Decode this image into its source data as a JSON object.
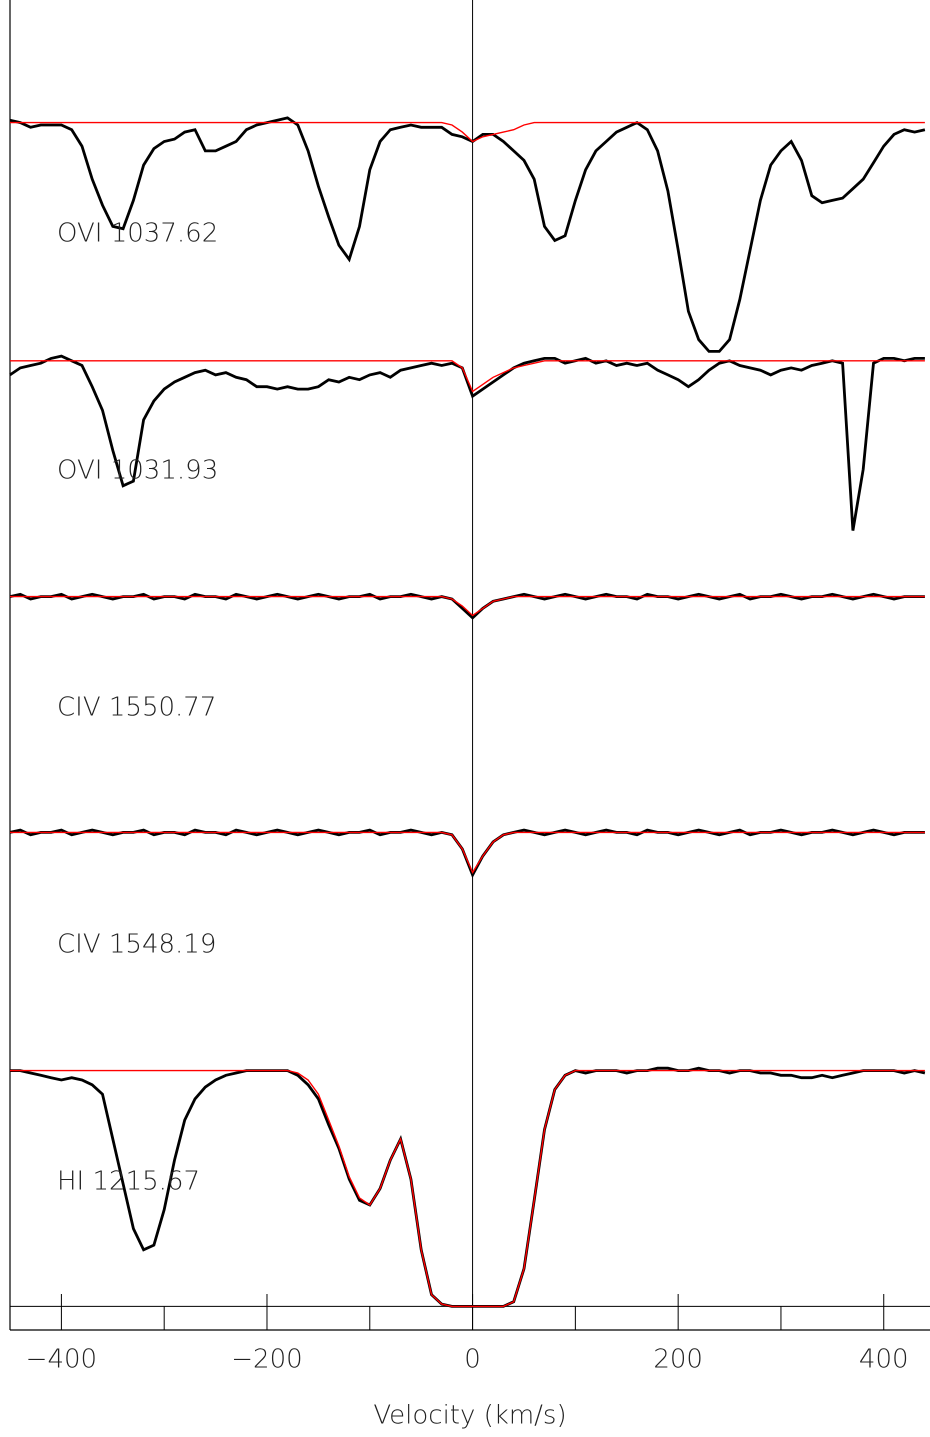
{
  "chart_data": {
    "type": "line",
    "x_label": "Velocity (km/s)",
    "xlim": [
      -450,
      445
    ],
    "ylim": [
      -0.1,
      5.54
    ],
    "xticks": [
      {
        "value": -400,
        "label": "−400"
      },
      {
        "value": -200,
        "label": "−200"
      },
      0,
      200,
      400
    ],
    "xminor": [
      -300,
      -100,
      100,
      300
    ],
    "vline": 0,
    "zero_line": true,
    "color": "#000000",
    "fit_color": "#ff0000",
    "x": [
      -450,
      -440,
      -430,
      -420,
      -410,
      -400,
      -390,
      -380,
      -370,
      -360,
      -350,
      -340,
      -330,
      -320,
      -310,
      -300,
      -290,
      -280,
      -270,
      -260,
      -250,
      -240,
      -230,
      -220,
      -210,
      -200,
      -190,
      -180,
      -170,
      -160,
      -150,
      -140,
      -130,
      -120,
      -110,
      -100,
      -90,
      -80,
      -70,
      -60,
      -50,
      -40,
      -30,
      -20,
      -10,
      0,
      10,
      20,
      30,
      40,
      50,
      60,
      70,
      80,
      90,
      100,
      110,
      120,
      130,
      140,
      150,
      160,
      170,
      180,
      190,
      200,
      210,
      220,
      230,
      240,
      250,
      260,
      270,
      280,
      290,
      300,
      310,
      320,
      330,
      340,
      350,
      360,
      370,
      380,
      390,
      400,
      410,
      420,
      430,
      440
    ],
    "series": [
      {
        "name": "OVI 1037.62",
        "values": [
          5.03,
          5.02,
          5.0,
          5.01,
          5.01,
          5.01,
          4.99,
          4.92,
          4.78,
          4.67,
          4.58,
          4.57,
          4.69,
          4.84,
          4.91,
          4.94,
          4.95,
          4.98,
          4.99,
          4.9,
          4.9,
          4.92,
          4.94,
          4.99,
          5.01,
          5.02,
          5.03,
          5.04,
          5.01,
          4.9,
          4.75,
          4.62,
          4.5,
          4.44,
          4.58,
          4.82,
          4.94,
          4.99,
          5.0,
          5.01,
          5.0,
          5.0,
          5.0,
          4.97,
          4.96,
          4.94,
          4.97,
          4.97,
          4.94,
          4.9,
          4.86,
          4.78,
          4.58,
          4.52,
          4.54,
          4.69,
          4.82,
          4.9,
          4.94,
          4.98,
          5.0,
          5.02,
          4.99,
          4.9,
          4.73,
          4.48,
          4.22,
          4.1,
          4.05,
          4.05,
          4.1,
          4.27,
          4.48,
          4.69,
          4.84,
          4.9,
          4.94,
          4.86,
          4.71,
          4.68,
          4.69,
          4.7,
          4.74,
          4.78,
          4.85,
          4.92,
          4.97,
          4.99,
          4.98,
          4.99
        ],
        "fit": [
          5.02,
          5.02,
          5.02,
          5.02,
          5.02,
          5.02,
          5.02,
          5.02,
          5.02,
          5.02,
          5.02,
          5.02,
          5.02,
          5.02,
          5.02,
          5.02,
          5.02,
          5.02,
          5.02,
          5.02,
          5.02,
          5.02,
          5.02,
          5.02,
          5.02,
          5.02,
          5.02,
          5.02,
          5.02,
          5.02,
          5.02,
          5.02,
          5.02,
          5.02,
          5.02,
          5.02,
          5.02,
          5.02,
          5.02,
          5.02,
          5.02,
          5.02,
          5.02,
          5.01,
          4.98,
          4.94,
          4.96,
          4.97,
          4.98,
          4.99,
          5.01,
          5.02,
          5.02,
          5.02,
          5.02,
          5.02,
          5.02,
          5.02,
          5.02,
          5.02,
          5.02,
          5.02,
          5.02,
          5.02,
          5.02,
          5.02,
          5.02,
          5.02,
          5.02,
          5.02,
          5.02,
          5.02,
          5.02,
          5.02,
          5.02,
          5.02,
          5.02,
          5.02,
          5.02,
          5.02,
          5.02,
          5.02,
          5.02,
          5.02,
          5.02,
          5.02,
          5.02,
          5.02,
          5.02,
          5.02
        ]
      },
      {
        "name": "OVI 1031.93",
        "values": [
          3.95,
          3.98,
          3.99,
          4.0,
          4.02,
          4.03,
          4.01,
          3.99,
          3.9,
          3.8,
          3.63,
          3.48,
          3.5,
          3.76,
          3.84,
          3.89,
          3.92,
          3.94,
          3.96,
          3.97,
          3.95,
          3.96,
          3.94,
          3.93,
          3.9,
          3.9,
          3.89,
          3.9,
          3.89,
          3.89,
          3.9,
          3.93,
          3.92,
          3.94,
          3.93,
          3.95,
          3.96,
          3.94,
          3.97,
          3.98,
          3.99,
          4.0,
          3.99,
          4.0,
          3.98,
          3.86,
          3.89,
          3.92,
          3.95,
          3.98,
          4.0,
          4.01,
          4.02,
          4.02,
          4.0,
          4.01,
          4.02,
          4.0,
          4.01,
          3.99,
          4.0,
          3.99,
          4.0,
          3.97,
          3.95,
          3.93,
          3.9,
          3.93,
          3.97,
          4.0,
          4.01,
          3.99,
          3.98,
          3.97,
          3.95,
          3.97,
          3.98,
          3.97,
          3.99,
          4.0,
          4.01,
          4.0,
          3.29,
          3.55,
          4.0,
          4.02,
          4.02,
          4.01,
          4.02,
          4.02
        ],
        "fit": [
          4.01,
          4.01,
          4.01,
          4.01,
          4.01,
          4.01,
          4.01,
          4.01,
          4.01,
          4.01,
          4.01,
          4.01,
          4.01,
          4.01,
          4.01,
          4.01,
          4.01,
          4.01,
          4.01,
          4.01,
          4.01,
          4.01,
          4.01,
          4.01,
          4.01,
          4.01,
          4.01,
          4.01,
          4.01,
          4.01,
          4.01,
          4.01,
          4.01,
          4.01,
          4.01,
          4.01,
          4.01,
          4.01,
          4.01,
          4.01,
          4.01,
          4.01,
          4.01,
          4.01,
          3.98,
          3.88,
          3.91,
          3.94,
          3.96,
          3.98,
          3.99,
          4.0,
          4.01,
          4.01,
          4.01,
          4.01,
          4.01,
          4.01,
          4.01,
          4.01,
          4.01,
          4.01,
          4.01,
          4.01,
          4.01,
          4.01,
          4.01,
          4.01,
          4.01,
          4.01,
          4.01,
          4.01,
          4.01,
          4.01,
          4.01,
          4.01,
          4.01,
          4.01,
          4.01,
          4.01,
          4.01,
          4.01,
          4.01,
          4.01,
          4.01,
          4.01,
          4.01,
          4.01,
          4.01,
          4.01
        ]
      },
      {
        "name": "CIV 1550.77",
        "values": [
          3.01,
          3.02,
          3.0,
          3.01,
          3.01,
          3.02,
          3.0,
          3.01,
          3.02,
          3.01,
          3.0,
          3.01,
          3.01,
          3.02,
          3.0,
          3.01,
          3.01,
          3.0,
          3.02,
          3.01,
          3.01,
          3.0,
          3.02,
          3.01,
          3.0,
          3.01,
          3.02,
          3.01,
          3.0,
          3.01,
          3.02,
          3.01,
          3.0,
          3.01,
          3.01,
          3.02,
          3.0,
          3.01,
          3.01,
          3.02,
          3.01,
          3.0,
          3.01,
          3.0,
          2.96,
          2.92,
          2.96,
          2.99,
          3.0,
          3.01,
          3.02,
          3.01,
          3.0,
          3.01,
          3.02,
          3.01,
          3.0,
          3.01,
          3.02,
          3.01,
          3.01,
          3.0,
          3.02,
          3.01,
          3.01,
          3.0,
          3.01,
          3.02,
          3.01,
          3.0,
          3.01,
          3.02,
          3.0,
          3.01,
          3.01,
          3.02,
          3.01,
          3.0,
          3.01,
          3.01,
          3.02,
          3.01,
          3.0,
          3.01,
          3.02,
          3.01,
          3.0,
          3.01,
          3.01,
          3.01
        ],
        "fit": [
          3.01,
          3.01,
          3.01,
          3.01,
          3.01,
          3.01,
          3.01,
          3.01,
          3.01,
          3.01,
          3.01,
          3.01,
          3.01,
          3.01,
          3.01,
          3.01,
          3.01,
          3.01,
          3.01,
          3.01,
          3.01,
          3.01,
          3.01,
          3.01,
          3.01,
          3.01,
          3.01,
          3.01,
          3.01,
          3.01,
          3.01,
          3.01,
          3.01,
          3.01,
          3.01,
          3.01,
          3.01,
          3.01,
          3.01,
          3.01,
          3.01,
          3.01,
          3.01,
          3.0,
          2.97,
          2.93,
          2.96,
          2.99,
          3.0,
          3.01,
          3.01,
          3.01,
          3.01,
          3.01,
          3.01,
          3.01,
          3.01,
          3.01,
          3.01,
          3.01,
          3.01,
          3.01,
          3.01,
          3.01,
          3.01,
          3.01,
          3.01,
          3.01,
          3.01,
          3.01,
          3.01,
          3.01,
          3.01,
          3.01,
          3.01,
          3.01,
          3.01,
          3.01,
          3.01,
          3.01,
          3.01,
          3.01,
          3.01,
          3.01,
          3.01,
          3.01,
          3.01,
          3.01,
          3.01,
          3.01
        ]
      },
      {
        "name": "CIV 1548.19",
        "values": [
          2.01,
          2.02,
          2.0,
          2.01,
          2.01,
          2.02,
          2.0,
          2.01,
          2.02,
          2.01,
          2.0,
          2.01,
          2.01,
          2.02,
          2.0,
          2.01,
          2.01,
          2.0,
          2.02,
          2.01,
          2.01,
          2.0,
          2.02,
          2.01,
          2.0,
          2.01,
          2.02,
          2.01,
          2.0,
          2.01,
          2.02,
          2.01,
          2.0,
          2.01,
          2.01,
          2.02,
          2.0,
          2.01,
          2.01,
          2.02,
          2.01,
          2.0,
          2.01,
          2.0,
          1.94,
          1.83,
          1.91,
          1.97,
          2.0,
          2.01,
          2.02,
          2.01,
          2.0,
          2.01,
          2.02,
          2.01,
          2.0,
          2.01,
          2.02,
          2.01,
          2.01,
          2.0,
          2.02,
          2.01,
          2.01,
          2.0,
          2.01,
          2.02,
          2.01,
          2.0,
          2.01,
          2.02,
          2.0,
          2.01,
          2.01,
          2.02,
          2.01,
          2.0,
          2.01,
          2.01,
          2.02,
          2.01,
          2.0,
          2.01,
          2.02,
          2.01,
          2.0,
          2.01,
          2.01,
          2.01
        ],
        "fit": [
          2.01,
          2.01,
          2.01,
          2.01,
          2.01,
          2.01,
          2.01,
          2.01,
          2.01,
          2.01,
          2.01,
          2.01,
          2.01,
          2.01,
          2.01,
          2.01,
          2.01,
          2.01,
          2.01,
          2.01,
          2.01,
          2.01,
          2.01,
          2.01,
          2.01,
          2.01,
          2.01,
          2.01,
          2.01,
          2.01,
          2.01,
          2.01,
          2.01,
          2.01,
          2.01,
          2.01,
          2.01,
          2.01,
          2.01,
          2.01,
          2.01,
          2.01,
          2.01,
          2.0,
          1.94,
          1.84,
          1.91,
          1.97,
          2.0,
          2.01,
          2.01,
          2.01,
          2.01,
          2.01,
          2.01,
          2.01,
          2.01,
          2.01,
          2.01,
          2.01,
          2.01,
          2.01,
          2.01,
          2.01,
          2.01,
          2.01,
          2.01,
          2.01,
          2.01,
          2.01,
          2.01,
          2.01,
          2.01,
          2.01,
          2.01,
          2.01,
          2.01,
          2.01,
          2.01,
          2.01,
          2.01,
          2.01,
          2.01,
          2.01,
          2.01,
          2.01,
          2.01,
          2.01,
          2.01,
          2.01
        ]
      },
      {
        "name": "HI 1215.67",
        "values": [
          1.0,
          1.0,
          0.99,
          0.98,
          0.97,
          0.96,
          0.97,
          0.96,
          0.94,
          0.9,
          0.71,
          0.52,
          0.33,
          0.24,
          0.26,
          0.41,
          0.62,
          0.79,
          0.88,
          0.93,
          0.96,
          0.98,
          0.99,
          1.0,
          1.0,
          1.0,
          1.0,
          1.0,
          0.98,
          0.94,
          0.88,
          0.77,
          0.67,
          0.54,
          0.45,
          0.43,
          0.5,
          0.62,
          0.71,
          0.54,
          0.24,
          0.05,
          0.01,
          0.0,
          0.0,
          0.0,
          0.0,
          0.0,
          0.0,
          0.02,
          0.16,
          0.45,
          0.75,
          0.92,
          0.98,
          1.0,
          0.99,
          1.0,
          1.0,
          1.0,
          0.99,
          1.0,
          1.0,
          1.01,
          1.01,
          1.0,
          1.0,
          1.01,
          1.0,
          1.0,
          0.99,
          1.0,
          1.0,
          0.99,
          0.99,
          0.98,
          0.98,
          0.97,
          0.97,
          0.98,
          0.97,
          0.98,
          0.99,
          1.0,
          1.0,
          1.0,
          1.0,
          0.99,
          1.0,
          0.99
        ],
        "fit": [
          1.0,
          1.0,
          1.0,
          1.0,
          1.0,
          1.0,
          1.0,
          1.0,
          1.0,
          1.0,
          1.0,
          1.0,
          1.0,
          1.0,
          1.0,
          1.0,
          1.0,
          1.0,
          1.0,
          1.0,
          1.0,
          1.0,
          1.0,
          1.0,
          1.0,
          1.0,
          1.0,
          1.0,
          0.99,
          0.96,
          0.9,
          0.79,
          0.68,
          0.55,
          0.46,
          0.43,
          0.5,
          0.62,
          0.71,
          0.54,
          0.24,
          0.05,
          0.01,
          0.0,
          0.0,
          0.0,
          0.0,
          0.0,
          0.0,
          0.02,
          0.16,
          0.45,
          0.75,
          0.92,
          0.98,
          1.0,
          1.0,
          1.0,
          1.0,
          1.0,
          1.0,
          1.0,
          1.0,
          1.0,
          1.0,
          1.0,
          1.0,
          1.0,
          1.0,
          1.0,
          1.0,
          1.0,
          1.0,
          1.0,
          1.0,
          1.0,
          1.0,
          1.0,
          1.0,
          1.0,
          1.0,
          1.0,
          1.0,
          1.0,
          1.0,
          1.0,
          1.0,
          1.0,
          1.0,
          1.0
        ]
      }
    ]
  }
}
